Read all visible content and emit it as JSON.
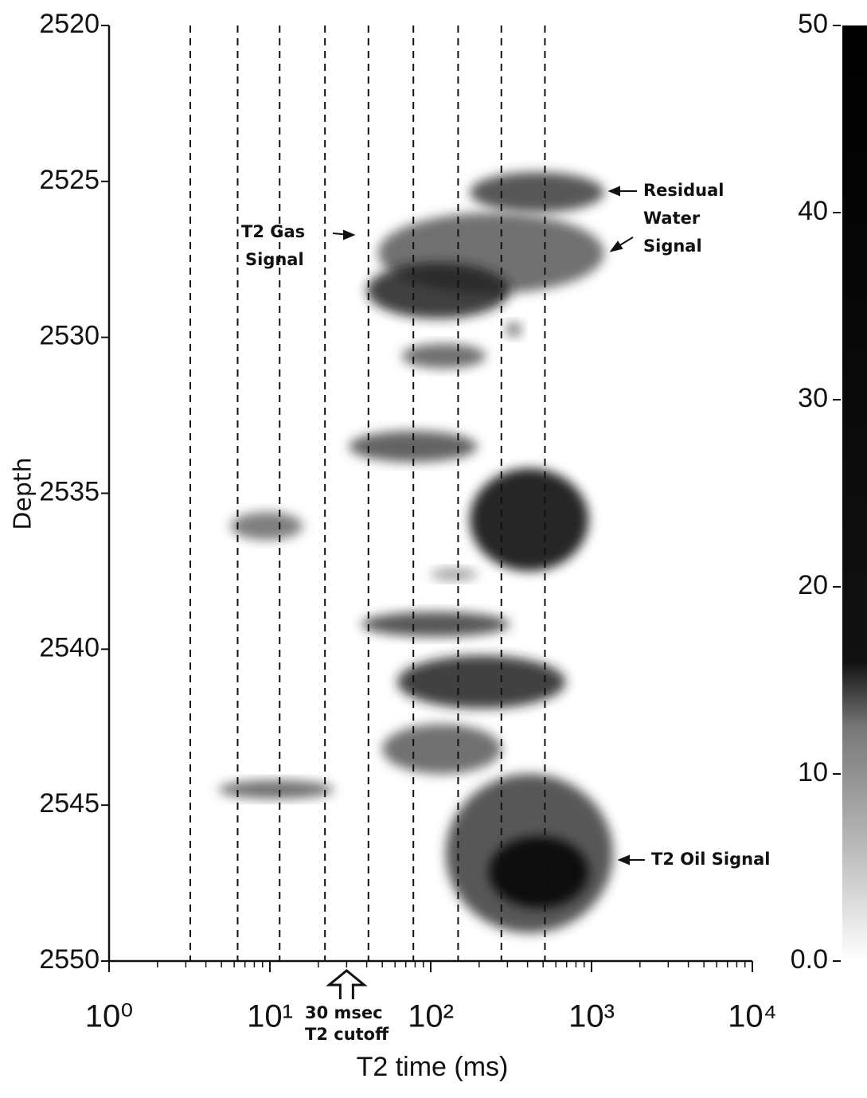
{
  "chart_data": {
    "type": "heatmap",
    "x_label": "T2 time (ms)",
    "y_label": "Depth",
    "xlim": [
      1,
      10000
    ],
    "x_log": true,
    "xticks": [
      {
        "value": 1,
        "label": "10⁰"
      },
      {
        "value": 10,
        "label": "10¹"
      },
      {
        "value": 100,
        "label": "10²"
      },
      {
        "value": 1000,
        "label": "10³"
      },
      {
        "value": 10000,
        "label": "10⁴"
      }
    ],
    "ylim": [
      2520,
      2550
    ],
    "yticks": [
      2520,
      2525,
      2530,
      2535,
      2540,
      2545,
      2550
    ],
    "reference_lines_x": [
      3.2,
      6.3,
      11.5,
      22,
      41,
      78,
      148,
      275,
      513
    ],
    "cutoff_ms": 30,
    "colorbar_lim": [
      0,
      50
    ],
    "colorbar_ticks": [
      {
        "value": 0,
        "label": "0.0"
      },
      10,
      20,
      30,
      40,
      50
    ],
    "cells": [
      {
        "x": [
          175,
          1200
        ],
        "depth": [
          2524.7,
          2526.0
        ],
        "value": 12
      },
      {
        "x": [
          47,
          1200
        ],
        "depth": [
          2526.0,
          2528.6
        ],
        "value": 10
      },
      {
        "x": [
          40,
          310
        ],
        "depth": [
          2527.6,
          2529.4
        ],
        "value": 14
      },
      {
        "x": [
          290,
          370
        ],
        "depth": [
          2529.5,
          2530.0
        ],
        "value": 8
      },
      {
        "x": [
          66,
          220
        ],
        "depth": [
          2530.2,
          2531.0
        ],
        "value": 10
      },
      {
        "x": [
          31,
          195
        ],
        "depth": [
          2533.0,
          2534.0
        ],
        "value": 11
      },
      {
        "x": [
          175,
          960
        ],
        "depth": [
          2534.2,
          2537.5
        ],
        "value": 16
      },
      {
        "x": [
          5.7,
          16
        ],
        "depth": [
          2535.6,
          2536.5
        ],
        "value": 9
      },
      {
        "x": [
          100,
          195
        ],
        "depth": [
          2537.4,
          2537.8
        ],
        "value": 6
      },
      {
        "x": [
          37,
          310
        ],
        "depth": [
          2538.8,
          2539.6
        ],
        "value": 12
      },
      {
        "x": [
          62,
          690
        ],
        "depth": [
          2540.2,
          2541.9
        ],
        "value": 14
      },
      {
        "x": [
          50,
          275
        ],
        "depth": [
          2542.4,
          2544.0
        ],
        "value": 10
      },
      {
        "x": [
          4.8,
          25
        ],
        "depth": [
          2544.2,
          2544.8
        ],
        "value": 10
      },
      {
        "x": [
          124,
          1360
        ],
        "depth": [
          2544.0,
          2549.1
        ],
        "value": 12
      },
      {
        "x": [
          230,
          960
        ],
        "depth": [
          2546.0,
          2548.3
        ],
        "value": 45
      }
    ],
    "annotations": [
      {
        "lines": [
          "Residual",
          "Water",
          "Signal"
        ]
      },
      {
        "lines": [
          "T2  Gas",
          "Signal"
        ]
      },
      {
        "lines": [
          "T2  Oil  Signal"
        ]
      },
      {
        "lines": [
          "30  msec",
          "T2  cutoff"
        ]
      }
    ]
  }
}
